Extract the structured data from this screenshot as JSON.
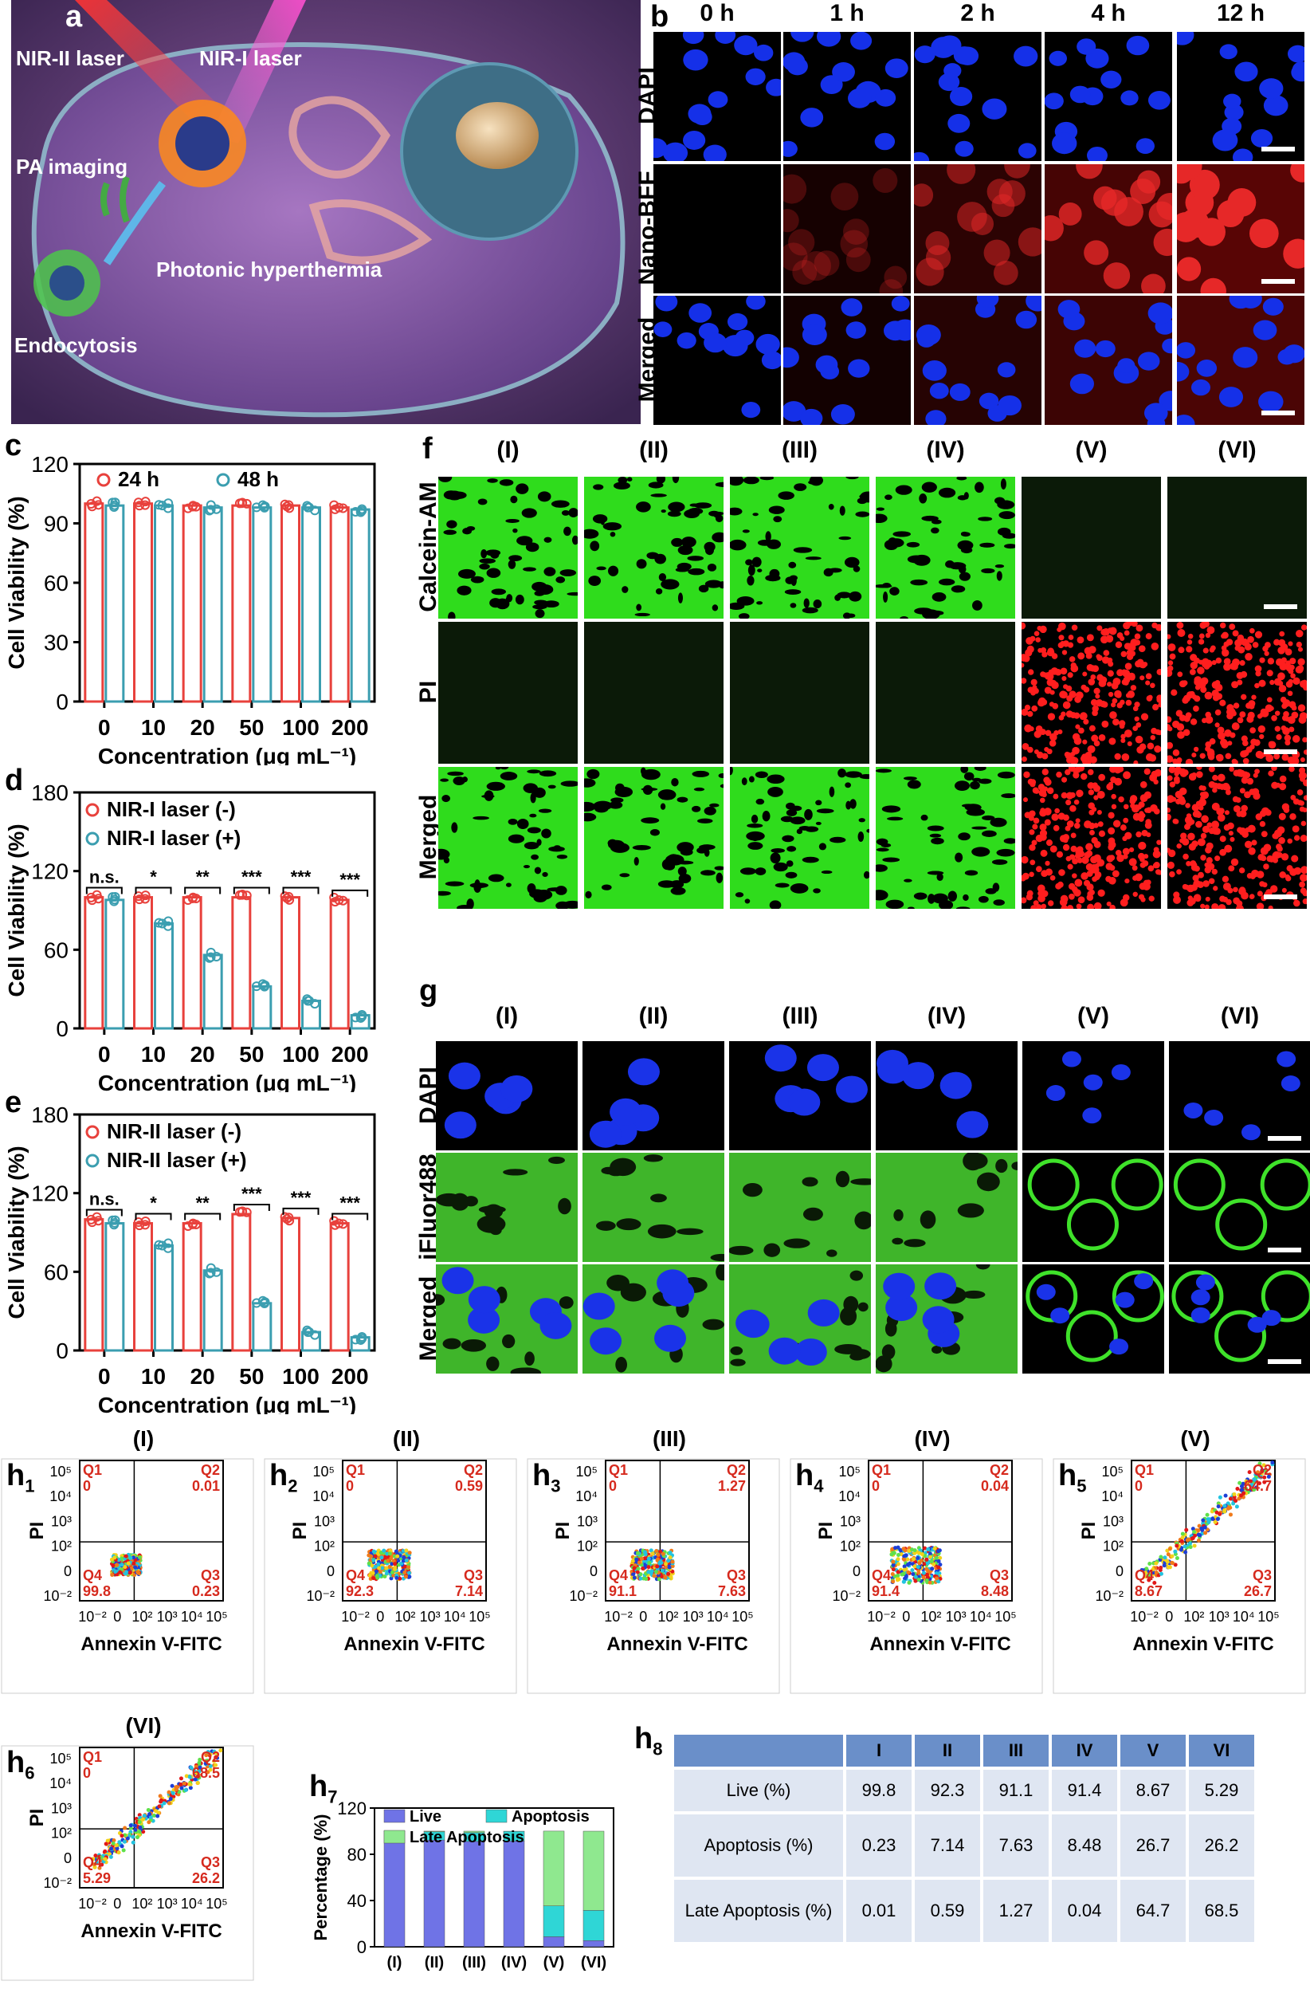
{
  "panels": {
    "a": "a",
    "b": "b",
    "c": "c",
    "d": "d",
    "e": "e",
    "f": "f",
    "g": "g",
    "h1": "h",
    "h1_sub": "1",
    "h2": "h",
    "h2_sub": "2",
    "h3": "h",
    "h3_sub": "3",
    "h4": "h",
    "h4_sub": "4",
    "h5": "h",
    "h5_sub": "5",
    "h6": "h",
    "h6_sub": "6",
    "h7": "h",
    "h7_sub": "7",
    "h8": "h",
    "h8_sub": "8"
  },
  "panel_a": {
    "labels": {
      "nir2": "NIR-II laser",
      "nir1": "NIR-I laser",
      "pa": "PA imaging",
      "photonic": "Photonic hyperthermia",
      "endocytosis": "Endocytosis"
    }
  },
  "panel_b": {
    "time_headers": [
      "0 h",
      "1 h",
      "2 h",
      "4 h",
      "12 h"
    ],
    "row_labels": [
      "DAPI",
      "Nano-BFF",
      "Merged"
    ]
  },
  "panel_f": {
    "col_headers": [
      "(I)",
      "(II)",
      "(III)",
      "(IV)",
      "(V)",
      "(VI)"
    ],
    "row_labels": [
      "Calcein-AM",
      "PI",
      "Merged"
    ]
  },
  "panel_g": {
    "col_headers": [
      "(I)",
      "(II)",
      "(III)",
      "(IV)",
      "(V)",
      "(VI)"
    ],
    "row_labels": [
      "DAPI",
      "iFluor488",
      "Merged"
    ]
  },
  "colors": {
    "red": "#e8413c",
    "teal": "#3b9eb0",
    "flow_label": "#d62a1e"
  },
  "chart_data": [
    {
      "id": "c",
      "type": "bar",
      "categories": [
        "0",
        "10",
        "20",
        "50",
        "100",
        "200"
      ],
      "series": [
        {
          "name": "24 h",
          "values": [
            100,
            100,
            99,
            99,
            99,
            98
          ],
          "color": "#e8413c"
        },
        {
          "name": "48 h",
          "values": [
            99,
            99,
            98,
            98,
            98,
            97
          ],
          "color": "#3b9eb0"
        }
      ],
      "ylabel": "Cell Viability (%)",
      "xlabel": "Concentration (μg mL⁻¹)",
      "ylim": [
        0,
        120
      ],
      "yticks": [
        0,
        30,
        60,
        90,
        120
      ],
      "legend": "top"
    },
    {
      "id": "d",
      "type": "bar",
      "categories": [
        "0",
        "10",
        "20",
        "50",
        "100",
        "200"
      ],
      "series": [
        {
          "name": "NIR-I laser (-)",
          "values": [
            100,
            100,
            100,
            100,
            100,
            98
          ],
          "color": "#e8413c"
        },
        {
          "name": "NIR-I laser (+)",
          "values": [
            98,
            80,
            56,
            32,
            21,
            10
          ],
          "color": "#3b9eb0"
        }
      ],
      "significance": [
        "n.s.",
        "*",
        "**",
        "***",
        "***",
        "***"
      ],
      "ylabel": "Cell Viability (%)",
      "xlabel": "Concentration (μg mL⁻¹)",
      "ylim": [
        0,
        180
      ],
      "yticks": [
        0,
        60,
        120,
        180
      ],
      "legend": "top-left"
    },
    {
      "id": "e",
      "type": "bar",
      "categories": [
        "0",
        "10",
        "20",
        "50",
        "100",
        "200"
      ],
      "series": [
        {
          "name": "NIR-II laser (-)",
          "values": [
            100,
            97,
            97,
            104,
            101,
            97
          ],
          "color": "#e8413c"
        },
        {
          "name": "NIR-II laser (+)",
          "values": [
            97,
            80,
            61,
            36,
            14,
            10
          ],
          "color": "#3b9eb0"
        }
      ],
      "significance": [
        "n.s.",
        "*",
        "**",
        "***",
        "***",
        "***"
      ],
      "ylabel": "Cell Viability (%)",
      "xlabel": "Concentration (μg mL⁻¹)",
      "ylim": [
        0,
        180
      ],
      "yticks": [
        0,
        60,
        120,
        180
      ],
      "legend": "top-left"
    },
    {
      "id": "h1",
      "type": "scatter",
      "title": "(I)",
      "quadrants": {
        "Q1": "0",
        "Q2": "0.01",
        "Q3": "0.23",
        "Q4": "99.8"
      },
      "xlabel": "Annexin V-FITC",
      "ylabel": "PI",
      "xticks": [
        "10⁻²",
        "0",
        "10²",
        "10³",
        "10⁴",
        "10⁵"
      ],
      "yticks": [
        "10⁵",
        "10⁴",
        "10³",
        "10²",
        "0",
        "10⁻²"
      ],
      "population": "compact-low"
    },
    {
      "id": "h2",
      "type": "scatter",
      "title": "(II)",
      "quadrants": {
        "Q1": "0",
        "Q2": "0.59",
        "Q3": "7.14",
        "Q4": "92.3"
      },
      "xlabel": "Annexin V-FITC",
      "ylabel": "PI",
      "xticks": [
        "10⁻²",
        "0",
        "10²",
        "10³",
        "10⁴",
        "10⁵"
      ],
      "yticks": [
        "10⁵",
        "10⁴",
        "10³",
        "10²",
        "0",
        "10⁻²"
      ],
      "population": "low-spread"
    },
    {
      "id": "h3",
      "type": "scatter",
      "title": "(III)",
      "quadrants": {
        "Q1": "0",
        "Q2": "1.27",
        "Q3": "7.63",
        "Q4": "91.1"
      },
      "xlabel": "Annexin V-FITC",
      "ylabel": "PI",
      "xticks": [
        "10⁻²",
        "0",
        "10²",
        "10³",
        "10⁴",
        "10⁵"
      ],
      "yticks": [
        "10⁵",
        "10⁴",
        "10³",
        "10²",
        "0",
        "10⁻²"
      ],
      "population": "low-spread"
    },
    {
      "id": "h4",
      "type": "scatter",
      "title": "(IV)",
      "quadrants": {
        "Q1": "0",
        "Q2": "0.04",
        "Q3": "8.48",
        "Q4": "91.4"
      },
      "xlabel": "Annexin V-FITC",
      "ylabel": "PI",
      "xticks": [
        "10⁻²",
        "0",
        "10²",
        "10³",
        "10⁴",
        "10⁵"
      ],
      "yticks": [
        "10⁵",
        "10⁴",
        "10³",
        "10²",
        "0",
        "10⁻²"
      ],
      "population": "low-wide"
    },
    {
      "id": "h5",
      "type": "scatter",
      "title": "(V)",
      "quadrants": {
        "Q1": "0",
        "Q2": "64.7",
        "Q3": "26.7",
        "Q4": "8.67"
      },
      "xlabel": "Annexin V-FITC",
      "ylabel": "PI",
      "xticks": [
        "10⁻²",
        "0",
        "10²",
        "10³",
        "10⁴",
        "10⁵"
      ],
      "yticks": [
        "10⁵",
        "10⁴",
        "10³",
        "10²",
        "0",
        "10⁻²"
      ],
      "population": "diagonal"
    },
    {
      "id": "h6",
      "type": "scatter",
      "title": "(VI)",
      "quadrants": {
        "Q1": "0",
        "Q2": "68.5",
        "Q3": "26.2",
        "Q4": "5.29"
      },
      "xlabel": "Annexin V-FITC",
      "ylabel": "PI",
      "xticks": [
        "10⁻²",
        "0",
        "10²",
        "10³",
        "10⁴",
        "10⁵"
      ],
      "yticks": [
        "10⁵",
        "10⁴",
        "10³",
        "10²",
        "0",
        "10⁻²"
      ],
      "population": "diagonal"
    },
    {
      "id": "h7",
      "type": "bar",
      "stacked": true,
      "categories": [
        "(I)",
        "(II)",
        "(III)",
        "(IV)",
        "(V)",
        "(VI)"
      ],
      "series": [
        {
          "name": "Live",
          "values": [
            99.8,
            92.3,
            91.1,
            91.4,
            8.67,
            5.29
          ],
          "color": "#6f73e6"
        },
        {
          "name": "Apoptosis",
          "values": [
            0.23,
            7.14,
            7.63,
            8.48,
            26.7,
            26.2
          ],
          "color": "#2fd6d6"
        },
        {
          "name": "Late Apoptosis",
          "values": [
            0.01,
            0.59,
            1.27,
            0.04,
            64.7,
            68.5
          ],
          "color": "#8fe88f"
        }
      ],
      "ylabel": "Percentage (%)",
      "ylim": [
        0,
        120
      ],
      "yticks": [
        0,
        40,
        80,
        120
      ],
      "legend": "top"
    },
    {
      "id": "h8",
      "type": "table",
      "headers": [
        "",
        "I",
        "II",
        "III",
        "IV",
        "V",
        "VI"
      ],
      "rows": [
        {
          "label": "Live (%)",
          "values": [
            "99.8",
            "92.3",
            "91.1",
            "91.4",
            "8.67",
            "5.29"
          ]
        },
        {
          "label": "Apoptosis (%)",
          "values": [
            "0.23",
            "7.14",
            "7.63",
            "8.48",
            "26.7",
            "26.2"
          ]
        },
        {
          "label": "Late Apoptosis (%)",
          "values": [
            "0.01",
            "0.59",
            "1.27",
            "0.04",
            "64.7",
            "68.5"
          ]
        }
      ]
    }
  ]
}
